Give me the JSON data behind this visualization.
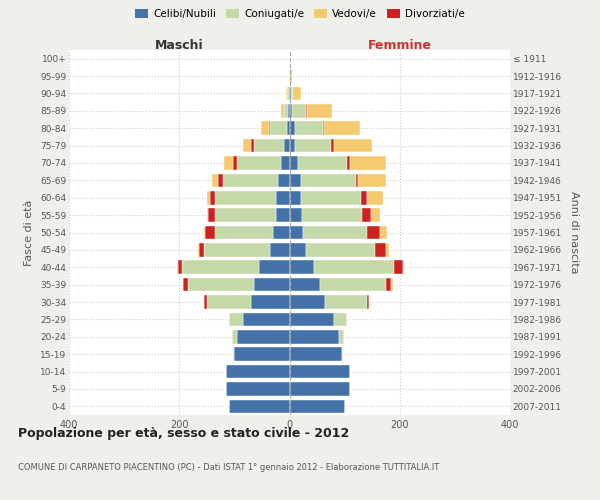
{
  "age_groups": [
    "0-4",
    "5-9",
    "10-14",
    "15-19",
    "20-24",
    "25-29",
    "30-34",
    "35-39",
    "40-44",
    "45-49",
    "50-54",
    "55-59",
    "60-64",
    "65-69",
    "70-74",
    "75-79",
    "80-84",
    "85-89",
    "90-94",
    "95-99",
    "100+"
  ],
  "birth_years": [
    "2007-2011",
    "2002-2006",
    "1997-2001",
    "1992-1996",
    "1987-1991",
    "1982-1986",
    "1977-1981",
    "1972-1976",
    "1967-1971",
    "1962-1966",
    "1957-1961",
    "1952-1956",
    "1947-1951",
    "1942-1946",
    "1937-1941",
    "1932-1936",
    "1927-1931",
    "1922-1926",
    "1917-1921",
    "1912-1916",
    "≤ 1911"
  ],
  "maschi": {
    "celibi": [
      110,
      115,
      115,
      100,
      95,
      85,
      70,
      65,
      55,
      35,
      30,
      25,
      25,
      20,
      15,
      10,
      5,
      2,
      1,
      0,
      0
    ],
    "coniugati": [
      0,
      0,
      0,
      2,
      10,
      25,
      80,
      120,
      140,
      120,
      105,
      110,
      110,
      100,
      80,
      55,
      30,
      8,
      3,
      1,
      0
    ],
    "vedovi": [
      0,
      0,
      0,
      0,
      0,
      0,
      0,
      0,
      1,
      1,
      2,
      3,
      5,
      10,
      15,
      15,
      15,
      5,
      2,
      0,
      0
    ],
    "divorziati": [
      0,
      0,
      0,
      0,
      0,
      0,
      5,
      8,
      8,
      10,
      18,
      12,
      10,
      10,
      8,
      5,
      2,
      0,
      0,
      0,
      0
    ]
  },
  "femmine": {
    "nubili": [
      100,
      110,
      110,
      95,
      90,
      80,
      65,
      55,
      45,
      30,
      25,
      22,
      20,
      20,
      15,
      10,
      10,
      5,
      2,
      0,
      0
    ],
    "coniugate": [
      0,
      0,
      0,
      2,
      8,
      25,
      75,
      120,
      145,
      125,
      115,
      110,
      110,
      100,
      90,
      65,
      50,
      25,
      4,
      0,
      0
    ],
    "vedove": [
      0,
      0,
      0,
      0,
      0,
      0,
      0,
      2,
      3,
      5,
      12,
      18,
      30,
      50,
      65,
      70,
      65,
      45,
      15,
      5,
      1
    ],
    "divorziate": [
      0,
      0,
      0,
      0,
      0,
      0,
      5,
      10,
      15,
      20,
      25,
      15,
      10,
      5,
      5,
      5,
      2,
      2,
      0,
      0,
      0
    ]
  },
  "colors": {
    "celibi": "#4472a8",
    "coniugati": "#c5d9a8",
    "vedovi": "#f5c96e",
    "divorziati": "#cc2222"
  },
  "xlim": 400,
  "title": "Popolazione per età, sesso e stato civile - 2012",
  "subtitle": "COMUNE DI CARPANETO PIACENTINO (PC) - Dati ISTAT 1° gennaio 2012 - Elaborazione TUTTITALIA.IT",
  "ylabel_left": "Fasce di età",
  "ylabel_right": "Anni di nascita",
  "xlabel_left": "Maschi",
  "xlabel_right": "Femmine",
  "bg_color": "#f0f0eb",
  "plot_bg_color": "#ffffff"
}
